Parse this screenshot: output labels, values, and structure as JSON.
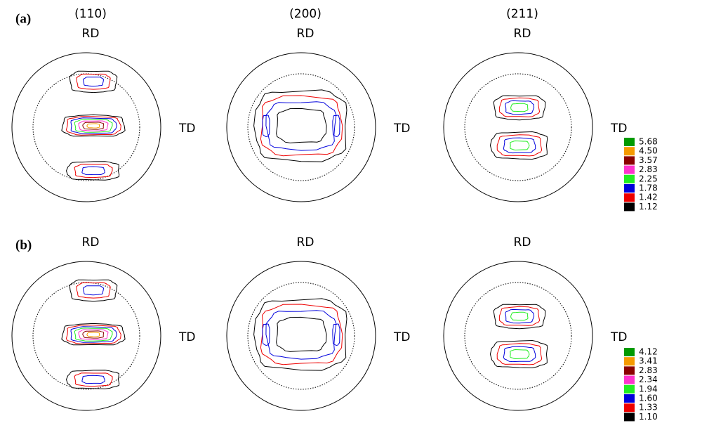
{
  "panels": [
    {
      "label": "(a)",
      "figures": [
        {
          "title": "(110)",
          "rd": "RD",
          "td": "TD"
        },
        {
          "title": "(200)",
          "rd": "RD",
          "td": "TD"
        },
        {
          "title": "(211)",
          "rd": "RD",
          "td": "TD"
        }
      ],
      "legend": [
        {
          "label": "5.68",
          "color": "#009a00"
        },
        {
          "label": "4.50",
          "color": "#f59a00"
        },
        {
          "label": "3.57",
          "color": "#8b0000"
        },
        {
          "label": "2.83",
          "color": "#ff33cc"
        },
        {
          "label": "2.25",
          "color": "#22ee22"
        },
        {
          "label": "1.78",
          "color": "#0000dd"
        },
        {
          "label": "1.42",
          "color": "#ee0000"
        },
        {
          "label": "1.12",
          "color": "#000000"
        }
      ]
    },
    {
      "label": "(b)",
      "figures": [
        {
          "rd": "RD",
          "td": "TD"
        },
        {
          "rd": "RD",
          "td": "TD"
        },
        {
          "rd": "RD",
          "td": "TD"
        }
      ],
      "legend": [
        {
          "label": "4.12",
          "color": "#009a00"
        },
        {
          "label": "3.41",
          "color": "#f59a00"
        },
        {
          "label": "2.83",
          "color": "#8b0000"
        },
        {
          "label": "2.34",
          "color": "#ff33cc"
        },
        {
          "label": "1.94",
          "color": "#22ee22"
        },
        {
          "label": "1.60",
          "color": "#0000dd"
        },
        {
          "label": "1.33",
          "color": "#ee0000"
        },
        {
          "label": "1.10",
          "color": "#000000"
        }
      ]
    }
  ]
}
